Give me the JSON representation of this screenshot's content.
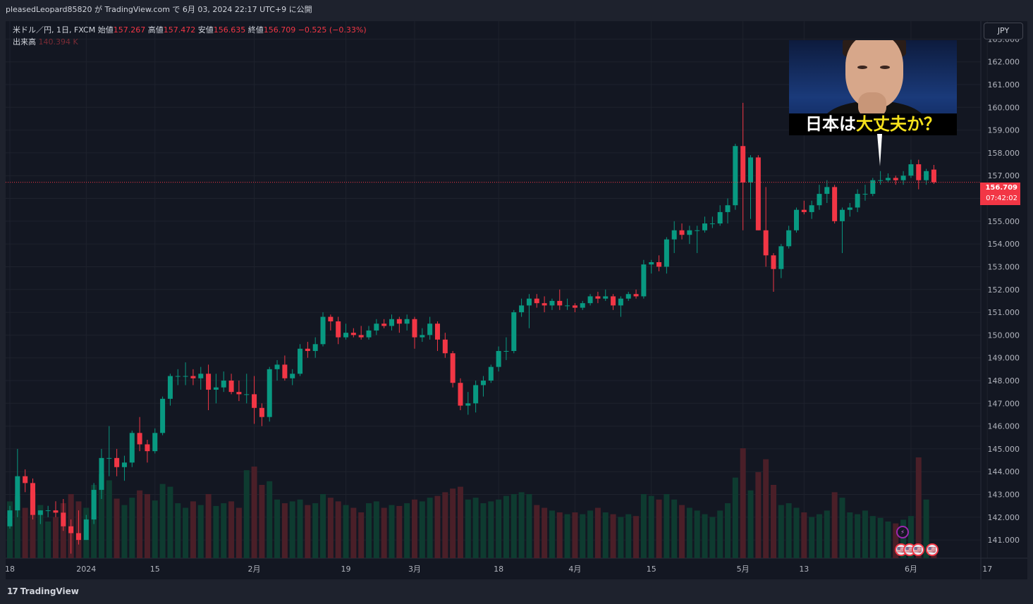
{
  "header": {
    "publish_line": "pleasedLeopard85820 が TradingView.com で 6月 03, 2024 22:17 UTC+9 に公開"
  },
  "legend": {
    "symbol": "米ドル／円, 1日, FXCM",
    "open_label": "始値",
    "open_value": "157.267",
    "high_label": "高値",
    "high_value": "157.472",
    "low_label": "安値",
    "low_value": "156.635",
    "close_label": "終値",
    "close_value": "156.709",
    "change": "−0.525 (−0.33%)",
    "volume_label": "出来高",
    "volume_value": "140.394 K"
  },
  "toolbar": {
    "currency": "JPY"
  },
  "price_tag": {
    "price": "156.709",
    "countdown": "07:42:02"
  },
  "thumbnail": {
    "caption_white": "日本は",
    "caption_yellow": "大丈夫か？"
  },
  "footer": {
    "logo_mark": "17",
    "logo_text": "TradingView"
  },
  "events": {
    "bolt": "⚡",
    "flag": "🇺🇸"
  },
  "colors": {
    "up": "#089981",
    "down": "#f23645",
    "up_volume": "#0e3b30",
    "down_volume": "#4a1f28",
    "background": "#131722",
    "grid": "#1e222d"
  },
  "chart_data": {
    "type": "candlestick",
    "symbol": "USDJPY",
    "interval": "1D",
    "ylim": [
      140.2,
      163.6
    ],
    "y_ticks": [
      "141.000",
      "142.000",
      "143.000",
      "144.000",
      "145.000",
      "146.000",
      "147.000",
      "148.000",
      "149.000",
      "150.000",
      "151.000",
      "152.000",
      "153.000",
      "154.000",
      "155.000",
      "156.000",
      "157.000",
      "158.000",
      "159.000",
      "160.000",
      "161.000",
      "162.000",
      "163.000"
    ],
    "x_ticks": [
      {
        "label": "18",
        "bar": 0
      },
      {
        "label": "2024",
        "bar": 10
      },
      {
        "label": "15",
        "bar": 19
      },
      {
        "label": "2月",
        "bar": 32
      },
      {
        "label": "19",
        "bar": 44
      },
      {
        "label": "3月",
        "bar": 53
      },
      {
        "label": "18",
        "bar": 64
      },
      {
        "label": "4月",
        "bar": 74
      },
      {
        "label": "15",
        "bar": 84
      },
      {
        "label": "5月",
        "bar": 96
      },
      {
        "label": "13",
        "bar": 104
      },
      {
        "label": "6月",
        "bar": 118
      },
      {
        "label": "17",
        "bar": 128
      }
    ],
    "last_price": 156.709,
    "candles": [
      {
        "o": 141.6,
        "h": 142.5,
        "l": 141.5,
        "c": 142.3,
        "v": 62
      },
      {
        "o": 142.3,
        "h": 145.0,
        "l": 142.0,
        "c": 143.8,
        "v": 68
      },
      {
        "o": 143.8,
        "h": 144.1,
        "l": 143.1,
        "c": 143.5,
        "v": 55
      },
      {
        "o": 143.5,
        "h": 143.7,
        "l": 141.9,
        "c": 142.1,
        "v": 72
      },
      {
        "o": 142.1,
        "h": 142.3,
        "l": 141.7,
        "c": 142.3,
        "v": 58
      },
      {
        "o": 142.3,
        "h": 142.5,
        "l": 142.0,
        "c": 142.3,
        "v": 40
      },
      {
        "o": 142.3,
        "h": 142.7,
        "l": 142.0,
        "c": 142.2,
        "v": 45
      },
      {
        "o": 142.2,
        "h": 142.8,
        "l": 141.4,
        "c": 141.6,
        "v": 60
      },
      {
        "o": 141.6,
        "h": 141.9,
        "l": 140.4,
        "c": 141.3,
        "v": 70
      },
      {
        "o": 141.3,
        "h": 142.3,
        "l": 140.8,
        "c": 141.0,
        "v": 62
      },
      {
        "o": 141.0,
        "h": 142.1,
        "l": 141.0,
        "c": 141.9,
        "v": 55
      },
      {
        "o": 141.9,
        "h": 143.5,
        "l": 141.7,
        "c": 143.2,
        "v": 80
      },
      {
        "o": 143.2,
        "h": 145.0,
        "l": 142.8,
        "c": 144.6,
        "v": 92
      },
      {
        "o": 144.6,
        "h": 146.0,
        "l": 143.8,
        "c": 144.6,
        "v": 85
      },
      {
        "o": 144.6,
        "h": 145.0,
        "l": 143.8,
        "c": 144.2,
        "v": 65
      },
      {
        "o": 144.2,
        "h": 144.7,
        "l": 143.6,
        "c": 144.4,
        "v": 58
      },
      {
        "o": 144.4,
        "h": 145.8,
        "l": 144.2,
        "c": 145.7,
        "v": 66
      },
      {
        "o": 145.7,
        "h": 146.4,
        "l": 144.9,
        "c": 145.2,
        "v": 74
      },
      {
        "o": 145.2,
        "h": 145.4,
        "l": 144.4,
        "c": 144.9,
        "v": 70
      },
      {
        "o": 144.9,
        "h": 145.9,
        "l": 144.8,
        "c": 145.7,
        "v": 63
      },
      {
        "o": 145.7,
        "h": 147.3,
        "l": 145.6,
        "c": 147.2,
        "v": 81
      },
      {
        "o": 147.2,
        "h": 148.3,
        "l": 146.9,
        "c": 148.2,
        "v": 78
      },
      {
        "o": 148.2,
        "h": 148.5,
        "l": 147.8,
        "c": 148.2,
        "v": 60
      },
      {
        "o": 148.2,
        "h": 148.8,
        "l": 147.8,
        "c": 148.2,
        "v": 55
      },
      {
        "o": 148.2,
        "h": 148.5,
        "l": 147.8,
        "c": 148.1,
        "v": 62
      },
      {
        "o": 148.1,
        "h": 148.6,
        "l": 147.6,
        "c": 148.3,
        "v": 58
      },
      {
        "o": 148.3,
        "h": 148.7,
        "l": 146.7,
        "c": 147.6,
        "v": 70
      },
      {
        "o": 147.6,
        "h": 148.3,
        "l": 147.0,
        "c": 147.7,
        "v": 57
      },
      {
        "o": 147.7,
        "h": 148.4,
        "l": 147.5,
        "c": 148.0,
        "v": 60
      },
      {
        "o": 148.0,
        "h": 148.3,
        "l": 147.4,
        "c": 147.5,
        "v": 62
      },
      {
        "o": 147.5,
        "h": 148.0,
        "l": 147.1,
        "c": 147.4,
        "v": 55
      },
      {
        "o": 147.4,
        "h": 148.3,
        "l": 147.0,
        "c": 147.4,
        "v": 96
      },
      {
        "o": 147.4,
        "h": 148.2,
        "l": 146.1,
        "c": 146.8,
        "v": 100
      },
      {
        "o": 146.8,
        "h": 147.0,
        "l": 146.0,
        "c": 146.4,
        "v": 80
      },
      {
        "o": 146.4,
        "h": 148.6,
        "l": 146.2,
        "c": 148.5,
        "v": 84
      },
      {
        "o": 148.5,
        "h": 148.9,
        "l": 148.0,
        "c": 148.7,
        "v": 64
      },
      {
        "o": 148.7,
        "h": 149.1,
        "l": 148.0,
        "c": 148.1,
        "v": 60
      },
      {
        "o": 148.1,
        "h": 148.5,
        "l": 147.8,
        "c": 148.3,
        "v": 62
      },
      {
        "o": 148.3,
        "h": 149.6,
        "l": 148.2,
        "c": 149.4,
        "v": 64
      },
      {
        "o": 149.4,
        "h": 149.7,
        "l": 149.0,
        "c": 149.3,
        "v": 58
      },
      {
        "o": 149.3,
        "h": 149.9,
        "l": 149.0,
        "c": 149.6,
        "v": 60
      },
      {
        "o": 149.6,
        "h": 151.0,
        "l": 149.5,
        "c": 150.8,
        "v": 70
      },
      {
        "o": 150.8,
        "h": 150.9,
        "l": 150.2,
        "c": 150.6,
        "v": 66
      },
      {
        "o": 150.6,
        "h": 150.8,
        "l": 149.6,
        "c": 149.9,
        "v": 62
      },
      {
        "o": 149.9,
        "h": 150.5,
        "l": 149.8,
        "c": 150.1,
        "v": 58
      },
      {
        "o": 150.1,
        "h": 150.3,
        "l": 149.9,
        "c": 150.0,
        "v": 55
      },
      {
        "o": 150.0,
        "h": 150.4,
        "l": 149.8,
        "c": 149.9,
        "v": 50
      },
      {
        "o": 149.9,
        "h": 150.4,
        "l": 149.8,
        "c": 150.2,
        "v": 60
      },
      {
        "o": 150.2,
        "h": 150.7,
        "l": 150.0,
        "c": 150.5,
        "v": 62
      },
      {
        "o": 150.5,
        "h": 150.7,
        "l": 150.3,
        "c": 150.4,
        "v": 55
      },
      {
        "o": 150.4,
        "h": 150.9,
        "l": 150.2,
        "c": 150.7,
        "v": 58
      },
      {
        "o": 150.7,
        "h": 150.8,
        "l": 150.1,
        "c": 150.5,
        "v": 57
      },
      {
        "o": 150.5,
        "h": 150.9,
        "l": 150.2,
        "c": 150.7,
        "v": 60
      },
      {
        "o": 150.7,
        "h": 150.8,
        "l": 149.4,
        "c": 149.9,
        "v": 64
      },
      {
        "o": 149.9,
        "h": 150.3,
        "l": 149.7,
        "c": 150.0,
        "v": 62
      },
      {
        "o": 150.0,
        "h": 150.8,
        "l": 149.8,
        "c": 150.5,
        "v": 66
      },
      {
        "o": 150.5,
        "h": 150.6,
        "l": 149.3,
        "c": 149.8,
        "v": 68
      },
      {
        "o": 149.8,
        "h": 150.1,
        "l": 149.0,
        "c": 149.2,
        "v": 72
      },
      {
        "o": 149.2,
        "h": 149.3,
        "l": 147.7,
        "c": 147.9,
        "v": 76
      },
      {
        "o": 147.9,
        "h": 148.1,
        "l": 146.7,
        "c": 146.9,
        "v": 78
      },
      {
        "o": 146.9,
        "h": 147.5,
        "l": 146.5,
        "c": 147.0,
        "v": 64
      },
      {
        "o": 147.0,
        "h": 148.0,
        "l": 146.6,
        "c": 147.8,
        "v": 66
      },
      {
        "o": 147.8,
        "h": 148.2,
        "l": 147.3,
        "c": 148.0,
        "v": 60
      },
      {
        "o": 148.0,
        "h": 148.7,
        "l": 147.9,
        "c": 148.6,
        "v": 62
      },
      {
        "o": 148.6,
        "h": 149.5,
        "l": 148.4,
        "c": 149.3,
        "v": 64
      },
      {
        "o": 149.3,
        "h": 149.9,
        "l": 148.9,
        "c": 149.3,
        "v": 68
      },
      {
        "o": 149.3,
        "h": 151.1,
        "l": 149.2,
        "c": 151.0,
        "v": 70
      },
      {
        "o": 151.0,
        "h": 151.6,
        "l": 150.8,
        "c": 151.3,
        "v": 72
      },
      {
        "o": 151.3,
        "h": 151.8,
        "l": 150.3,
        "c": 151.6,
        "v": 70
      },
      {
        "o": 151.6,
        "h": 151.8,
        "l": 151.2,
        "c": 151.4,
        "v": 58
      },
      {
        "o": 151.4,
        "h": 151.7,
        "l": 151.0,
        "c": 151.3,
        "v": 55
      },
      {
        "o": 151.3,
        "h": 151.6,
        "l": 151.1,
        "c": 151.5,
        "v": 52
      },
      {
        "o": 151.5,
        "h": 152.0,
        "l": 151.1,
        "c": 151.3,
        "v": 50
      },
      {
        "o": 151.3,
        "h": 151.6,
        "l": 151.1,
        "c": 151.3,
        "v": 48
      },
      {
        "o": 151.3,
        "h": 151.4,
        "l": 151.0,
        "c": 151.2,
        "v": 50
      },
      {
        "o": 151.2,
        "h": 151.5,
        "l": 151.1,
        "c": 151.4,
        "v": 48
      },
      {
        "o": 151.4,
        "h": 151.8,
        "l": 151.3,
        "c": 151.7,
        "v": 52
      },
      {
        "o": 151.7,
        "h": 151.9,
        "l": 151.4,
        "c": 151.6,
        "v": 55
      },
      {
        "o": 151.6,
        "h": 152.0,
        "l": 151.5,
        "c": 151.7,
        "v": 50
      },
      {
        "o": 151.7,
        "h": 151.8,
        "l": 151.1,
        "c": 151.3,
        "v": 48
      },
      {
        "o": 151.3,
        "h": 151.7,
        "l": 150.8,
        "c": 151.6,
        "v": 45
      },
      {
        "o": 151.6,
        "h": 151.9,
        "l": 151.5,
        "c": 151.8,
        "v": 48
      },
      {
        "o": 151.8,
        "h": 152.0,
        "l": 151.6,
        "c": 151.7,
        "v": 46
      },
      {
        "o": 151.7,
        "h": 153.3,
        "l": 151.6,
        "c": 153.1,
        "v": 70
      },
      {
        "o": 153.1,
        "h": 153.3,
        "l": 152.7,
        "c": 153.2,
        "v": 68
      },
      {
        "o": 153.2,
        "h": 153.5,
        "l": 152.8,
        "c": 153.0,
        "v": 64
      },
      {
        "o": 153.0,
        "h": 154.3,
        "l": 152.7,
        "c": 154.2,
        "v": 70
      },
      {
        "o": 154.2,
        "h": 155.0,
        "l": 153.6,
        "c": 154.6,
        "v": 64
      },
      {
        "o": 154.6,
        "h": 154.9,
        "l": 154.2,
        "c": 154.4,
        "v": 58
      },
      {
        "o": 154.4,
        "h": 154.8,
        "l": 154.0,
        "c": 154.6,
        "v": 55
      },
      {
        "o": 154.6,
        "h": 154.8,
        "l": 153.6,
        "c": 154.6,
        "v": 52
      },
      {
        "o": 154.6,
        "h": 155.2,
        "l": 154.5,
        "c": 154.9,
        "v": 48
      },
      {
        "o": 154.9,
        "h": 155.2,
        "l": 154.7,
        "c": 154.9,
        "v": 45
      },
      {
        "o": 154.9,
        "h": 155.7,
        "l": 154.8,
        "c": 155.4,
        "v": 52
      },
      {
        "o": 155.4,
        "h": 156.0,
        "l": 154.9,
        "c": 155.7,
        "v": 60
      },
      {
        "o": 155.7,
        "h": 158.4,
        "l": 155.5,
        "c": 158.3,
        "v": 88
      },
      {
        "o": 158.3,
        "h": 160.2,
        "l": 154.6,
        "c": 156.7,
        "v": 120
      },
      {
        "o": 156.7,
        "h": 157.9,
        "l": 155.1,
        "c": 157.8,
        "v": 74
      },
      {
        "o": 157.8,
        "h": 157.9,
        "l": 154.6,
        "c": 154.6,
        "v": 94
      },
      {
        "o": 154.6,
        "h": 156.5,
        "l": 153.0,
        "c": 153.5,
        "v": 108
      },
      {
        "o": 153.5,
        "h": 153.6,
        "l": 151.9,
        "c": 152.9,
        "v": 80
      },
      {
        "o": 152.9,
        "h": 154.0,
        "l": 152.5,
        "c": 153.9,
        "v": 58
      },
      {
        "o": 153.9,
        "h": 154.8,
        "l": 153.8,
        "c": 154.6,
        "v": 60
      },
      {
        "o": 154.6,
        "h": 155.6,
        "l": 154.5,
        "c": 155.5,
        "v": 55
      },
      {
        "o": 155.5,
        "h": 155.9,
        "l": 155.3,
        "c": 155.4,
        "v": 50
      },
      {
        "o": 155.4,
        "h": 155.9,
        "l": 155.1,
        "c": 155.7,
        "v": 45
      },
      {
        "o": 155.7,
        "h": 156.6,
        "l": 155.5,
        "c": 156.2,
        "v": 48
      },
      {
        "o": 156.2,
        "h": 156.8,
        "l": 155.8,
        "c": 156.5,
        "v": 52
      },
      {
        "o": 156.5,
        "h": 156.6,
        "l": 154.9,
        "c": 155.0,
        "v": 72
      },
      {
        "o": 155.0,
        "h": 155.6,
        "l": 153.6,
        "c": 155.5,
        "v": 66
      },
      {
        "o": 155.5,
        "h": 155.8,
        "l": 155.2,
        "c": 155.6,
        "v": 50
      },
      {
        "o": 155.6,
        "h": 156.4,
        "l": 155.4,
        "c": 156.2,
        "v": 48
      },
      {
        "o": 156.2,
        "h": 156.6,
        "l": 155.9,
        "c": 156.2,
        "v": 52
      },
      {
        "o": 156.2,
        "h": 156.9,
        "l": 156.1,
        "c": 156.8,
        "v": 46
      },
      {
        "o": 156.8,
        "h": 157.2,
        "l": 156.6,
        "c": 156.8,
        "v": 44
      },
      {
        "o": 156.8,
        "h": 157.1,
        "l": 156.7,
        "c": 156.9,
        "v": 40
      },
      {
        "o": 156.9,
        "h": 157.0,
        "l": 156.6,
        "c": 156.8,
        "v": 38
      },
      {
        "o": 156.8,
        "h": 157.2,
        "l": 156.6,
        "c": 157.0,
        "v": 42
      },
      {
        "o": 157.0,
        "h": 157.7,
        "l": 156.9,
        "c": 157.5,
        "v": 46
      },
      {
        "o": 157.5,
        "h": 157.7,
        "l": 156.4,
        "c": 156.8,
        "v": 110
      },
      {
        "o": 156.8,
        "h": 157.3,
        "l": 156.6,
        "c": 157.2,
        "v": 64
      },
      {
        "o": 157.267,
        "h": 157.472,
        "l": 156.635,
        "c": 156.709,
        "v": 8
      }
    ]
  }
}
